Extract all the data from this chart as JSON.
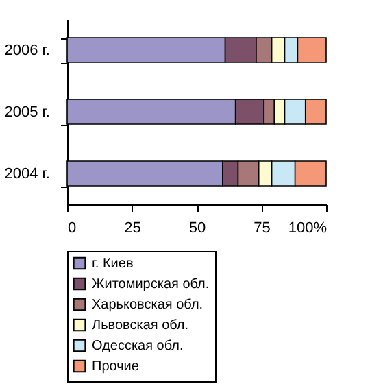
{
  "chart_data": {
    "type": "bar",
    "orientation": "horizontal",
    "stacked": true,
    "categories": [
      "2006 г.",
      "2005 г.",
      "2004 г."
    ],
    "series": [
      {
        "name": "г. Киев",
        "color": "#9b95c8",
        "values": [
          61,
          65,
          60
        ]
      },
      {
        "name": "Житомирская обл.",
        "color": "#7b5068",
        "values": [
          12,
          11,
          6
        ]
      },
      {
        "name": "Харьковская обл.",
        "color": "#a87878",
        "values": [
          6,
          4,
          8
        ]
      },
      {
        "name": "Львовская обл.",
        "color": "#fffbd0",
        "values": [
          5,
          4,
          5
        ]
      },
      {
        "name": "Одесская обл.",
        "color": "#c8e8f5",
        "values": [
          5,
          8,
          9
        ]
      },
      {
        "name": "Прочие",
        "color": "#f59878",
        "values": [
          11,
          8,
          12
        ]
      }
    ],
    "xlim": [
      0,
      100
    ],
    "xticks": [
      0,
      25,
      50,
      75,
      {
        "value": 100,
        "label": "100%"
      }
    ],
    "grid": false,
    "legend": "bottom"
  }
}
